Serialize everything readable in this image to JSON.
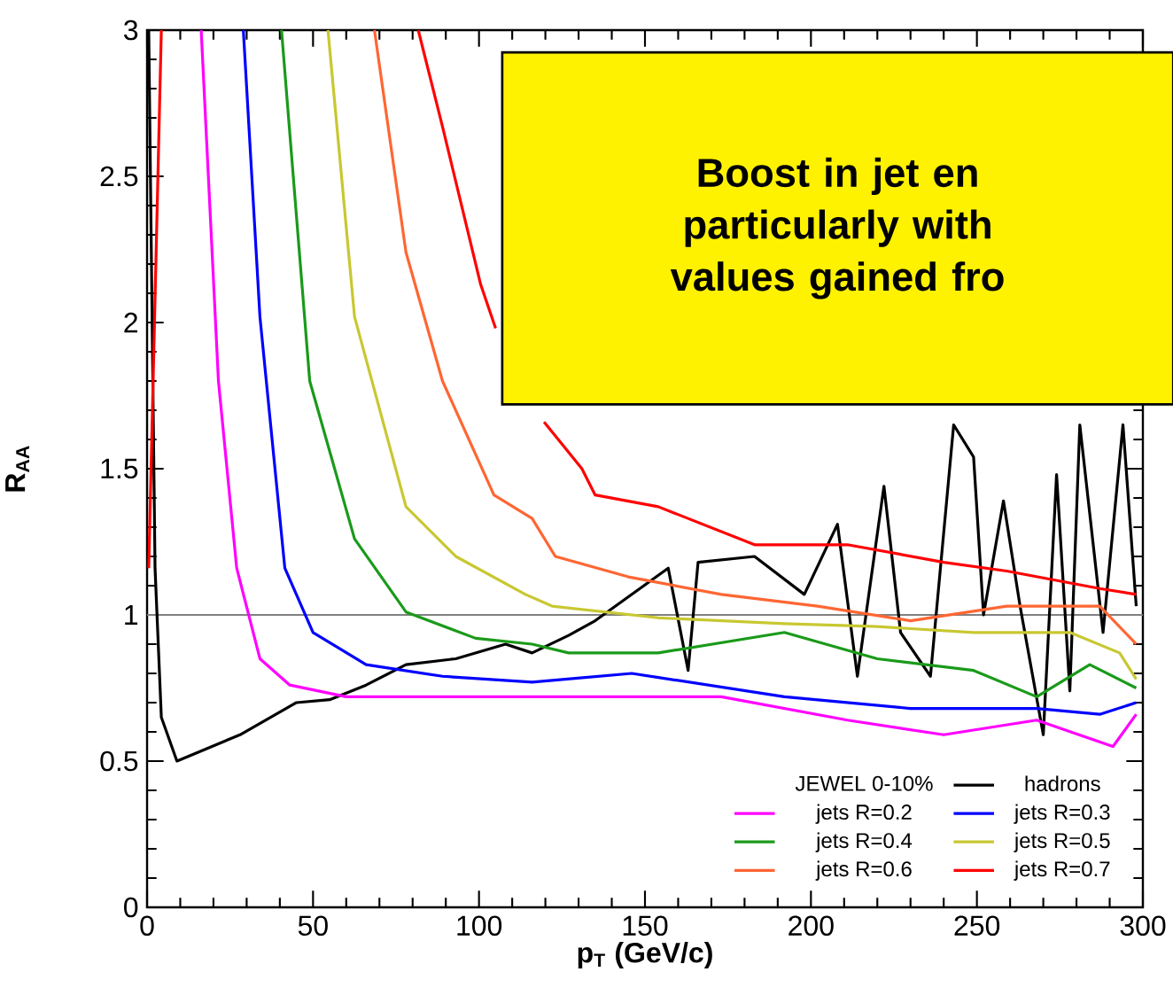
{
  "chart_data": {
    "type": "line",
    "xlabel": "p$_{T}$ (GeV/c)",
    "ylabel": "R$_{AA}$",
    "legend_title": "JEWEL 0-10%",
    "xlim": [
      0,
      300
    ],
    "ylim": [
      0,
      3
    ],
    "xticks": [
      0,
      50,
      100,
      150,
      200,
      250,
      300
    ],
    "yticks": [
      0,
      0.5,
      1,
      1.5,
      2,
      2.5,
      3
    ],
    "grid": false,
    "legend": "bottom right",
    "marker": "none",
    "line_style": "solid",
    "annotations": [
      "Boost in jet en",
      "particularly with",
      "values gained fro"
    ],
    "ref_lines": [
      {
        "axis": "y",
        "value": 1,
        "color": "#808080"
      }
    ],
    "series": [
      {
        "name": "hadrons",
        "color": "#000000",
        "x": [
          0.5,
          2.4,
          4.3,
          9,
          28,
          45,
          55,
          66,
          78,
          93,
          108,
          116,
          127,
          135,
          157,
          163,
          166,
          183,
          198,
          208,
          214,
          222,
          227,
          236,
          243,
          249,
          252,
          258,
          263,
          270,
          274,
          278,
          281,
          288,
          294,
          298
        ],
        "values": [
          3,
          1.16,
          0.65,
          0.5,
          0.59,
          0.7,
          0.71,
          0.76,
          0.83,
          0.85,
          0.9,
          0.87,
          0.93,
          0.98,
          1.16,
          0.81,
          1.18,
          1.2,
          1.07,
          1.31,
          0.79,
          1.44,
          0.94,
          0.79,
          1.65,
          1.54,
          1.0,
          1.39,
          1.03,
          0.59,
          1.48,
          0.74,
          1.65,
          0.94,
          1.65,
          1.03
        ]
      },
      {
        "name": "jets R=0.2",
        "color": "#ff00ff",
        "x": [
          16.3,
          21.5,
          27,
          34,
          43,
          60,
          108,
          173,
          211,
          240,
          268,
          291,
          298
        ],
        "values": [
          3,
          1.8,
          1.16,
          0.85,
          0.76,
          0.72,
          0.72,
          0.72,
          0.64,
          0.59,
          0.64,
          0.55,
          0.66
        ]
      },
      {
        "name": "jets R=0.3",
        "color": "#0000ff",
        "x": [
          29,
          34,
          41.5,
          50,
          66,
          89,
          116,
          146,
          192,
          230,
          268,
          287,
          298
        ],
        "values": [
          3,
          2.02,
          1.16,
          0.94,
          0.83,
          0.79,
          0.77,
          0.8,
          0.72,
          0.68,
          0.68,
          0.66,
          0.7
        ]
      },
      {
        "name": "jets R=0.4",
        "color": "#1a9a1a",
        "x": [
          40.5,
          49,
          62.5,
          78,
          99,
          116,
          127,
          154,
          192,
          220,
          249,
          268,
          284,
          298
        ],
        "values": [
          3,
          1.8,
          1.26,
          1.01,
          0.92,
          0.9,
          0.87,
          0.87,
          0.94,
          0.85,
          0.81,
          0.72,
          0.83,
          0.75
        ]
      },
      {
        "name": "jets R=0.5",
        "color": "#c8c832",
        "x": [
          54.5,
          62.5,
          78,
          93,
          114,
          122,
          154,
          192,
          220,
          249,
          278,
          293,
          298
        ],
        "values": [
          3,
          2.02,
          1.37,
          1.2,
          1.07,
          1.03,
          0.99,
          0.97,
          0.96,
          0.94,
          0.94,
          0.87,
          0.78
        ]
      },
      {
        "name": "jets R=0.6",
        "color": "#ff6633",
        "x": [
          68.5,
          78,
          89,
          104.5,
          116,
          123,
          145,
          173,
          202,
          230,
          259,
          287,
          298
        ],
        "values": [
          3,
          2.24,
          1.8,
          1.41,
          1.33,
          1.2,
          1.13,
          1.07,
          1.03,
          0.98,
          1.03,
          1.03,
          0.9
        ]
      },
      {
        "name": "jets R=0.7",
        "color": "#ff0000",
        "x": [
          0.5,
          4.3,
          null,
          81.7,
          89,
          100.5,
          105,
          null,
          119.6,
          131,
          135,
          154,
          183,
          211,
          240,
          259,
          287,
          298
        ],
        "values": [
          1.16,
          3,
          null,
          3,
          2.67,
          2.13,
          1.98,
          null,
          1.66,
          1.5,
          1.41,
          1.37,
          1.24,
          1.24,
          1.18,
          1.15,
          1.09,
          1.07
        ]
      }
    ]
  }
}
